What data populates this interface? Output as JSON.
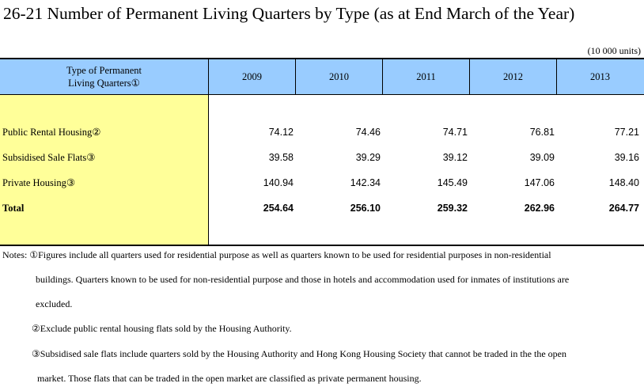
{
  "title": "26-21  Number of Permanent Living Quarters by Type (as at End March of the Year)",
  "units": "(10 000 units)",
  "table": {
    "header_first": "Type of Permanent Living Quarters①",
    "years": [
      "2009",
      "2010",
      "2011",
      "2012",
      "2013"
    ],
    "rows": [
      {
        "label": "Public Rental Housing②",
        "values": [
          "74.12",
          "74.46",
          "74.71",
          "76.81",
          "77.21"
        ]
      },
      {
        "label": "Subsidised Sale Flats③",
        "values": [
          "39.58",
          "39.29",
          "39.12",
          "39.09",
          "39.16"
        ]
      },
      {
        "label": "Private Housing③",
        "values": [
          "140.94",
          "142.34",
          "145.49",
          "147.06",
          "148.40"
        ]
      },
      {
        "label": "Total",
        "values": [
          "254.64",
          "256.10",
          "259.32",
          "262.96",
          "264.77"
        ]
      }
    ]
  },
  "notes": {
    "note1_line1": "Notes: ①Figures include all quarters used for residential purpose as well as quarters known to be used for residential purposes in non-residential",
    "note1_line2": "buildings. Quarters known to be used for non-residential purpose and those in hotels and accommodation used for inmates of institutions are",
    "note1_line3": "excluded.",
    "note2": "②Exclude public rental housing flats sold by the Housing Authority.",
    "note3_line1": "③Subsidised sale flats include quarters sold by the Housing Authority and Hong Kong Housing Society that cannot be traded in the the open",
    "note3_line2": "market. Those flats that can be traded in the open market are classified as private permanent housing."
  }
}
